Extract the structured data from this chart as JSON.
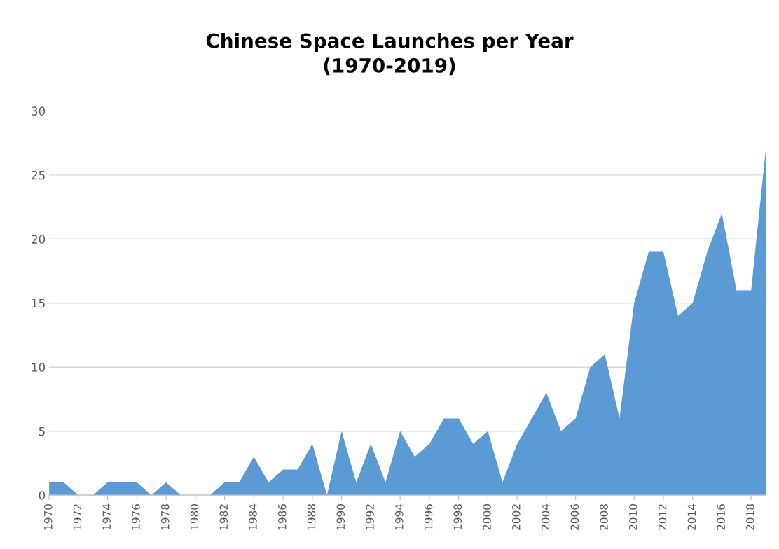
{
  "chart_data": {
    "type": "area",
    "title": "Chinese Space Launches per Year\n(1970-2019)",
    "categories": [
      "1970",
      null,
      "1972",
      null,
      "1974",
      null,
      "1976",
      null,
      "1978",
      null,
      "1980",
      null,
      "1982",
      null,
      "1984",
      null,
      "1986",
      null,
      "1988",
      null,
      "1990",
      null,
      "1992",
      null,
      "1994",
      null,
      "1996",
      null,
      "1998",
      null,
      "2000",
      null,
      "2002",
      null,
      "2004",
      null,
      "2006",
      null,
      "2008",
      null,
      "2010",
      null,
      "2012",
      null,
      "2014",
      null,
      "2016",
      null,
      "2018",
      null
    ],
    "values": [
      1,
      1,
      0,
      0,
      1,
      1,
      1,
      0,
      1,
      0,
      0,
      0,
      1,
      1,
      3,
      1,
      2,
      2,
      4,
      0,
      5,
      1,
      4,
      1,
      5,
      3,
      4,
      6,
      6,
      4,
      5,
      1,
      4,
      6,
      8,
      5,
      6,
      10,
      11,
      6,
      15,
      19,
      19,
      14,
      15,
      19,
      22,
      16,
      16,
      27
    ],
    "color": "#5b9bd5",
    "ylim": [
      0,
      30
    ],
    "yticks": [
      0,
      5,
      10,
      15,
      20,
      25,
      30
    ],
    "grid": "y"
  }
}
